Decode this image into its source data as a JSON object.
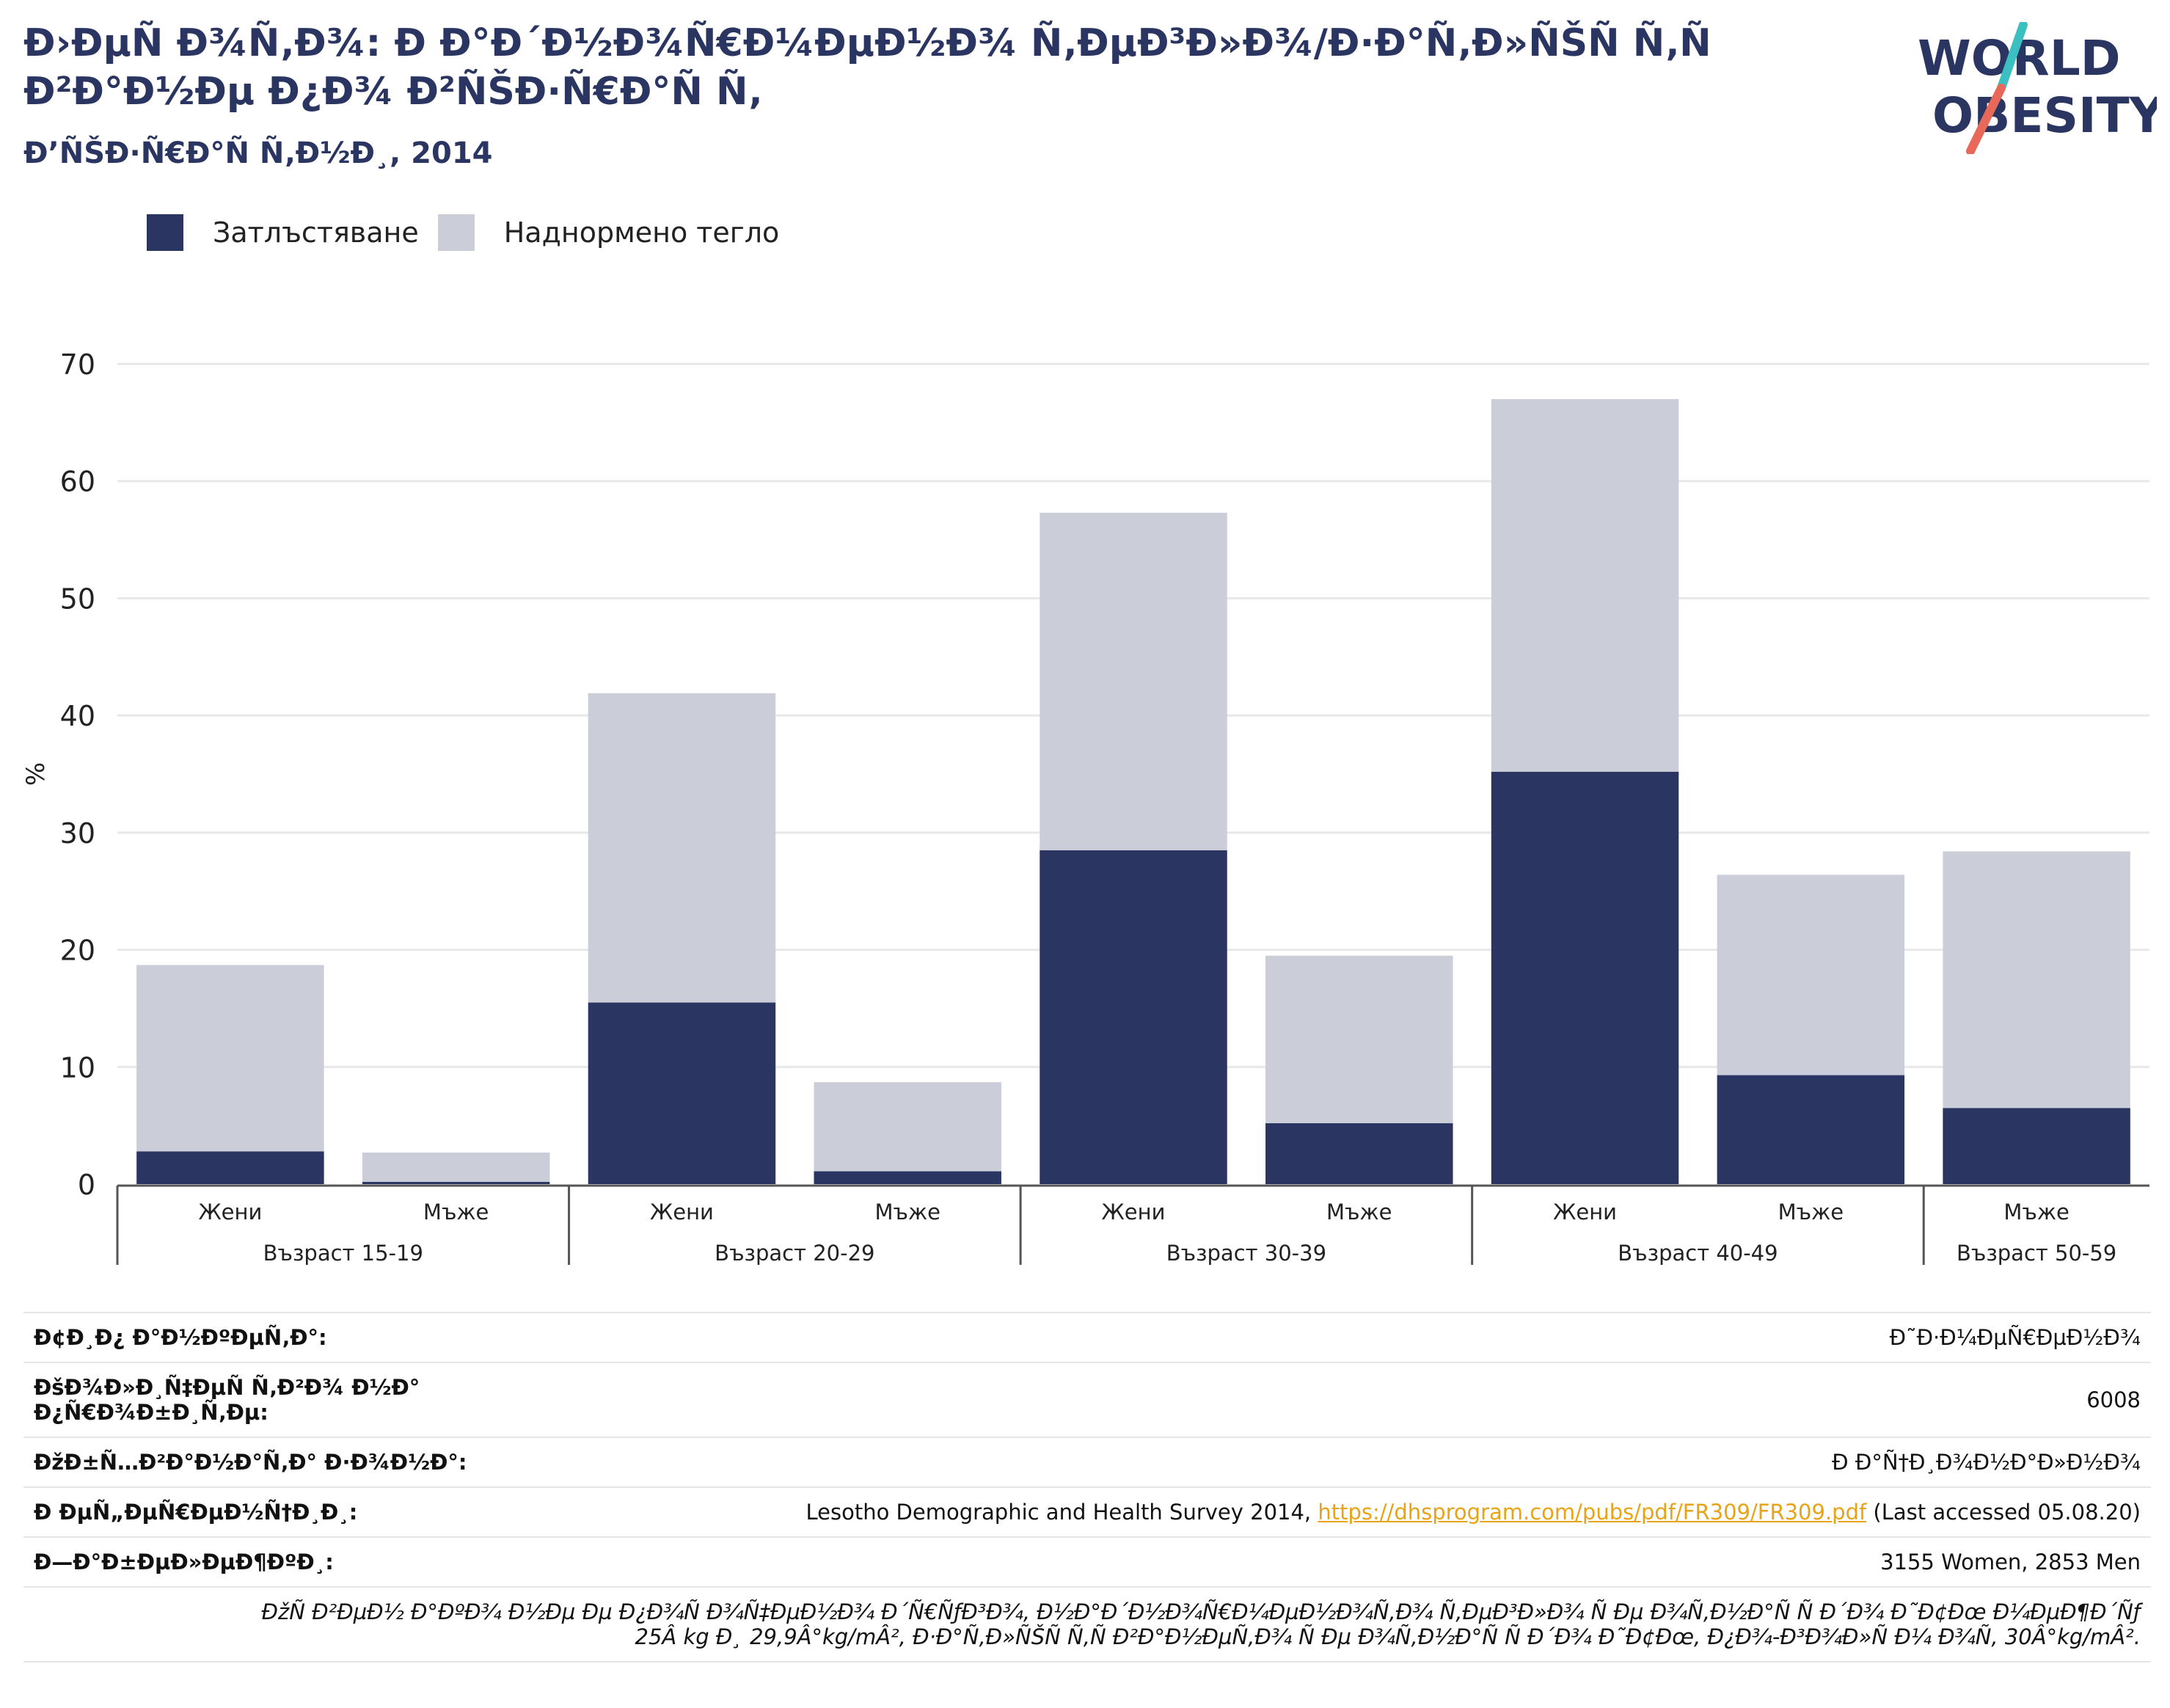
{
  "header": {
    "title": "Ð›ÐµÑ Ð¾Ñ‚Ð¾: Ð Ð°Ð´Ð½Ð¾Ñ€Ð¼ÐµÐ½Ð¾ Ñ‚ÐµÐ³Ð»Ð¾/Ð·Ð°Ñ‚Ð»ÑŠÑ Ñ‚Ñ Ð²Ð°Ð½Ðµ Ð¿Ð¾ Ð²ÑŠÐ·Ñ€Ð°Ñ Ñ‚",
    "subtitle": "Ð’ÑŠÐ·Ñ€Ð°Ñ Ñ‚Ð½Ð¸, 2014"
  },
  "logo": {
    "line1": "WORLD",
    "line2": "OBESITY"
  },
  "colors": {
    "obesity": "#2a3561",
    "overweight": "#cbcdd9",
    "logo_teal": "#3bbfc0",
    "logo_red": "#e8685a"
  },
  "legend": [
    {
      "label": "Затлъстяване",
      "color": "#2a3561"
    },
    {
      "label": "Наднормено тегло",
      "color": "#cbcdd9"
    }
  ],
  "chart_data": {
    "type": "bar",
    "stacked": true,
    "ylabel": "%",
    "ylim": [
      0,
      70
    ],
    "yticks": [
      0,
      10,
      20,
      30,
      40,
      50,
      60,
      70
    ],
    "grid": true,
    "legend_position": "top-left",
    "categories": [
      {
        "sex": "Жени",
        "group": "Възраст 15-19"
      },
      {
        "sex": "Мъже",
        "group": "Възраст 15-19"
      },
      {
        "sex": "Жени",
        "group": "Възраст 20-29"
      },
      {
        "sex": "Мъже",
        "group": "Възраст 20-29"
      },
      {
        "sex": "Жени",
        "group": "Възраст 30-39"
      },
      {
        "sex": "Мъже",
        "group": "Възраст 30-39"
      },
      {
        "sex": "Жени",
        "group": "Възраст 40-49"
      },
      {
        "sex": "Мъже",
        "group": "Възраст 40-49"
      },
      {
        "sex": "Мъже",
        "group": "Възраст 50-59"
      }
    ],
    "groups": [
      {
        "label": "Възраст 15-19",
        "count": 2
      },
      {
        "label": "Възраст 20-29",
        "count": 2
      },
      {
        "label": "Възраст 30-39",
        "count": 2
      },
      {
        "label": "Възраст 40-49",
        "count": 2
      },
      {
        "label": "Възраст 50-59",
        "count": 1
      }
    ],
    "series": [
      {
        "name": "Затлъстяване",
        "values": [
          2.8,
          0.2,
          15.5,
          1.1,
          28.5,
          5.2,
          35.2,
          9.3,
          6.5
        ]
      },
      {
        "name": "Наднормено тегло",
        "values": [
          15.9,
          2.5,
          26.4,
          7.6,
          28.8,
          14.3,
          31.8,
          17.1,
          21.9
        ]
      }
    ]
  },
  "info": {
    "rows": [
      {
        "label": "Ð¢Ð¸Ð¿ Ð°Ð½ÐºÐµÑ‚Ð°:",
        "value": "Ð˜Ð·Ð¼ÐµÑ€ÐµÐ½Ð¾"
      },
      {
        "label": "ÐšÐ¾Ð»Ð¸Ñ‡ÐµÑ Ñ‚Ð²Ð¾ Ð½Ð° Ð¿Ñ€Ð¾Ð±Ð¸Ñ‚Ðµ:",
        "value": "6008"
      },
      {
        "label": "ÐžÐ±Ñ…Ð²Ð°Ð½Ð°Ñ‚Ð° Ð·Ð¾Ð½Ð°:",
        "value": "Ð Ð°Ñ†Ð¸Ð¾Ð½Ð°Ð»Ð½Ð¾"
      },
      {
        "label": "Ð ÐµÑ„ÐµÑ€ÐµÐ½Ñ†Ð¸Ð¸:",
        "value_prefix": "Lesotho Demographic and Health Survey 2014, ",
        "link": "https://dhsprogram.com/pubs/pdf/FR309/FR309.pdf",
        "value_suffix": " (Last accessed 05.08.20)"
      },
      {
        "label": "Ð—Ð°Ð±ÐµÐ»ÐµÐ¶ÐºÐ¸:",
        "value": "3155 Women, 2853 Men"
      }
    ],
    "note_line1": "ÐžÑ Ð²ÐµÐ½ Ð°ÐºÐ¾ Ð½Ðµ Ðµ Ð¿Ð¾Ñ Ð¾Ñ‡ÐµÐ½Ð¾ Ð´Ñ€ÑƒÐ³Ð¾, Ð½Ð°Ð´Ð½Ð¾Ñ€Ð¼ÐµÐ½Ð¾Ñ‚Ð¾ Ñ‚ÐµÐ³Ð»Ð¾ Ñ Ðµ Ð¾Ñ‚Ð½Ð°Ñ Ñ  Ð´Ð¾ Ð˜Ð¢Ðœ Ð¼ÐµÐ¶Ð´Ñƒ",
    "note_line2": "25Â kg Ð¸ 29,9Â°kg/mÂ², Ð·Ð°Ñ‚Ð»ÑŠÑ Ñ‚Ñ Ð²Ð°Ð½ÐµÑ‚Ð¾ Ñ Ðµ Ð¾Ñ‚Ð½Ð°Ñ Ñ  Ð´Ð¾ Ð˜Ð¢Ðœ, Ð¿Ð¾-Ð³Ð¾Ð»Ñ Ð¼ Ð¾Ñ‚ 30Â°kg/mÂ²."
  }
}
